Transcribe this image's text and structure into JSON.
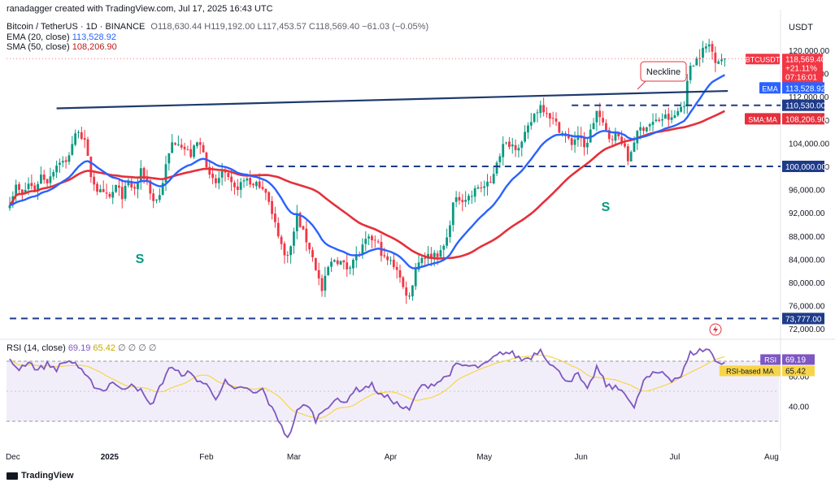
{
  "header": {
    "creator": "ranadagger created with TradingView.com, Jul 17, 2025 16:43 UTC",
    "symbol": "Bitcoin / TetherUS · 1D · BINANCE",
    "ohlc": "O118,630.44 H119,192.00 L117,453.57 C118,569.40 −61.03 (−0.05%)",
    "ema_label": "EMA (20, close)",
    "ema_value": "113,528.92",
    "sma_label": "SMA (50, close)",
    "sma_value": "108,206.90",
    "rsi_label": "RSI (14, close)",
    "rsi_value": "69.19",
    "rsi_ma_value": "65.42",
    "rsi_extra": "∅ ∅ ∅ ∅"
  },
  "axis": {
    "currency": "USDT"
  },
  "annotations": {
    "neckline": "Neckline",
    "shoulder_left": "S",
    "shoulder_right": "S"
  },
  "logo": {
    "text": "TradingView",
    "icon": "tradingview-logo-icon"
  },
  "colors": {
    "candle_up": "#089981",
    "candle_down": "#f23645",
    "ema": "#2962ff",
    "sma": "#e5303b",
    "rsi": "#7e57c2",
    "rsi_ma": "#f7d54a",
    "neckline": "#1e3a6e",
    "level": "#1e3a8a",
    "label_bg": "#f23645"
  },
  "chart_data": {
    "type": "candlestick",
    "price_ticks": [
      "120,000.00",
      "116,000.00",
      "112,000.00",
      "108,000.00",
      "104,000.00",
      "100,000.00",
      "96,000.00",
      "92,000.00",
      "88,000.00",
      "84,000.00",
      "80,000.00",
      "76,000.00",
      "72,000.00"
    ],
    "price_range": [
      70200,
      125600
    ],
    "rsi_ticks": [
      "60.00",
      "40.00"
    ],
    "rsi_range": [
      14.3,
      83.5
    ],
    "time_labels": [
      {
        "label": "Dec",
        "day": 1
      },
      {
        "label": "2025",
        "day": 32,
        "bold": true
      },
      {
        "label": "Feb",
        "day": 63
      },
      {
        "label": "Mar",
        "day": 91
      },
      {
        "label": "Apr",
        "day": 122
      },
      {
        "label": "May",
        "day": 152
      },
      {
        "label": "Jun",
        "day": 183
      },
      {
        "label": "Jul",
        "day": 213
      },
      {
        "label": "Aug",
        "day": 244
      }
    ],
    "last_day": 229,
    "badges": [
      {
        "text": "BTCUSDT",
        "sub": [
          "118,569.40",
          "+21.11%",
          "07:16:01"
        ],
        "price": 118569.4,
        "color": "#f23645"
      },
      {
        "text": "EMA",
        "value": "113,528.92",
        "price": 113528.92,
        "color": "#2962ff"
      },
      {
        "text": "",
        "value": "110,530.00",
        "price": 110530,
        "color": "#1e3a8a"
      },
      {
        "text": "SMA:MA",
        "value": "108,206.90",
        "price": 108206.9,
        "color": "#e5303b"
      },
      {
        "text": "",
        "value": "100,000.00",
        "price": 100000,
        "color": "#1e3a8a"
      },
      {
        "text": "",
        "value": "73,777.00",
        "price": 73777,
        "color": "#1e3a8a"
      }
    ],
    "rsi_badges": [
      {
        "text": "RSI",
        "value": "69.19",
        "rsi": 69.19,
        "color": "#7e57c2"
      },
      {
        "text": "RSI-based MA",
        "value": "65.42",
        "rsi": 65.42,
        "color": "#f7d54a"
      }
    ],
    "levels": [
      {
        "price": 110530,
        "from_day": 180
      },
      {
        "price": 100000,
        "from_day": 82
      },
      {
        "price": 73777,
        "from_day": 0
      }
    ],
    "neckline": {
      "from": {
        "day": 15,
        "price": 110000
      },
      "to": {
        "day": 230,
        "price": 113000
      }
    },
    "rsi_bands": [
      70,
      30
    ],
    "close_path": [
      {
        "day": 0,
        "price": 94000
      },
      {
        "day": 2,
        "price": 96500
      },
      {
        "day": 4,
        "price": 95000
      },
      {
        "day": 6,
        "price": 97000
      },
      {
        "day": 8,
        "price": 96000
      },
      {
        "day": 10,
        "price": 98500
      },
      {
        "day": 12,
        "price": 97500
      },
      {
        "day": 14,
        "price": 99500
      },
      {
        "day": 16,
        "price": 101000
      },
      {
        "day": 18,
        "price": 100500
      },
      {
        "day": 20,
        "price": 104000
      },
      {
        "day": 22,
        "price": 106500
      },
      {
        "day": 24,
        "price": 104000
      },
      {
        "day": 26,
        "price": 98500
      },
      {
        "day": 28,
        "price": 96000
      },
      {
        "day": 30,
        "price": 95000
      },
      {
        "day": 32,
        "price": 94500
      },
      {
        "day": 34,
        "price": 96500
      },
      {
        "day": 36,
        "price": 95000
      },
      {
        "day": 38,
        "price": 97000
      },
      {
        "day": 40,
        "price": 96000
      },
      {
        "day": 42,
        "price": 99000
      },
      {
        "day": 44,
        "price": 97500
      },
      {
        "day": 46,
        "price": 94000
      },
      {
        "day": 48,
        "price": 95000
      },
      {
        "day": 50,
        "price": 100000
      },
      {
        "day": 52,
        "price": 104000
      },
      {
        "day": 54,
        "price": 104500
      },
      {
        "day": 56,
        "price": 103000
      },
      {
        "day": 58,
        "price": 102000
      },
      {
        "day": 60,
        "price": 104000
      },
      {
        "day": 62,
        "price": 103000
      },
      {
        "day": 64,
        "price": 98000
      },
      {
        "day": 66,
        "price": 97000
      },
      {
        "day": 68,
        "price": 99000
      },
      {
        "day": 70,
        "price": 97500
      },
      {
        "day": 72,
        "price": 96000
      },
      {
        "day": 74,
        "price": 97000
      },
      {
        "day": 76,
        "price": 98000
      },
      {
        "day": 78,
        "price": 96500
      },
      {
        "day": 80,
        "price": 97000
      },
      {
        "day": 82,
        "price": 96000
      },
      {
        "day": 84,
        "price": 91500
      },
      {
        "day": 86,
        "price": 88500
      },
      {
        "day": 88,
        "price": 84500
      },
      {
        "day": 90,
        "price": 86000
      },
      {
        "day": 92,
        "price": 91500
      },
      {
        "day": 94,
        "price": 88500
      },
      {
        "day": 96,
        "price": 86000
      },
      {
        "day": 98,
        "price": 82500
      },
      {
        "day": 100,
        "price": 78500
      },
      {
        "day": 102,
        "price": 82500
      },
      {
        "day": 104,
        "price": 84000
      },
      {
        "day": 106,
        "price": 83500
      },
      {
        "day": 108,
        "price": 82500
      },
      {
        "day": 110,
        "price": 84000
      },
      {
        "day": 112,
        "price": 85000
      },
      {
        "day": 114,
        "price": 87000
      },
      {
        "day": 116,
        "price": 87500
      },
      {
        "day": 118,
        "price": 86500
      },
      {
        "day": 120,
        "price": 84000
      },
      {
        "day": 122,
        "price": 83500
      },
      {
        "day": 124,
        "price": 82500
      },
      {
        "day": 126,
        "price": 79000
      },
      {
        "day": 128,
        "price": 77500
      },
      {
        "day": 130,
        "price": 82500
      },
      {
        "day": 132,
        "price": 84500
      },
      {
        "day": 134,
        "price": 84500
      },
      {
        "day": 136,
        "price": 85000
      },
      {
        "day": 138,
        "price": 85000
      },
      {
        "day": 140,
        "price": 87500
      },
      {
        "day": 142,
        "price": 93500
      },
      {
        "day": 144,
        "price": 94500
      },
      {
        "day": 146,
        "price": 94500
      },
      {
        "day": 148,
        "price": 95000
      },
      {
        "day": 150,
        "price": 96500
      },
      {
        "day": 152,
        "price": 96500
      },
      {
        "day": 154,
        "price": 97000
      },
      {
        "day": 156,
        "price": 101000
      },
      {
        "day": 158,
        "price": 103500
      },
      {
        "day": 160,
        "price": 104000
      },
      {
        "day": 162,
        "price": 103500
      },
      {
        "day": 164,
        "price": 104000
      },
      {
        "day": 166,
        "price": 106500
      },
      {
        "day": 168,
        "price": 109000
      },
      {
        "day": 170,
        "price": 110500
      },
      {
        "day": 172,
        "price": 109500
      },
      {
        "day": 174,
        "price": 108000
      },
      {
        "day": 176,
        "price": 106500
      },
      {
        "day": 178,
        "price": 105000
      },
      {
        "day": 180,
        "price": 104000
      },
      {
        "day": 182,
        "price": 105500
      },
      {
        "day": 184,
        "price": 103000
      },
      {
        "day": 186,
        "price": 106000
      },
      {
        "day": 188,
        "price": 109500
      },
      {
        "day": 190,
        "price": 107000
      },
      {
        "day": 192,
        "price": 105000
      },
      {
        "day": 194,
        "price": 105500
      },
      {
        "day": 196,
        "price": 104500
      },
      {
        "day": 198,
        "price": 101000
      },
      {
        "day": 200,
        "price": 104500
      },
      {
        "day": 202,
        "price": 106500
      },
      {
        "day": 204,
        "price": 107000
      },
      {
        "day": 206,
        "price": 107500
      },
      {
        "day": 208,
        "price": 108000
      },
      {
        "day": 210,
        "price": 108500
      },
      {
        "day": 212,
        "price": 108000
      },
      {
        "day": 214,
        "price": 109500
      },
      {
        "day": 216,
        "price": 111000
      },
      {
        "day": 218,
        "price": 117500
      },
      {
        "day": 220,
        "price": 118500
      },
      {
        "day": 222,
        "price": 120000
      },
      {
        "day": 224,
        "price": 121000
      },
      {
        "day": 226,
        "price": 118500
      },
      {
        "day": 228,
        "price": 118500
      },
      {
        "day": 229,
        "price": 118569.4
      }
    ],
    "rsi_path": [
      {
        "day": 0,
        "rsi": 70
      },
      {
        "day": 3,
        "rsi": 65
      },
      {
        "day": 6,
        "rsi": 70
      },
      {
        "day": 9,
        "rsi": 64
      },
      {
        "day": 12,
        "rsi": 68
      },
      {
        "day": 15,
        "rsi": 65
      },
      {
        "day": 18,
        "rsi": 70
      },
      {
        "day": 21,
        "rsi": 69
      },
      {
        "day": 24,
        "rsi": 60
      },
      {
        "day": 27,
        "rsi": 54
      },
      {
        "day": 30,
        "rsi": 50
      },
      {
        "day": 33,
        "rsi": 57
      },
      {
        "day": 36,
        "rsi": 50
      },
      {
        "day": 39,
        "rsi": 56
      },
      {
        "day": 42,
        "rsi": 50
      },
      {
        "day": 45,
        "rsi": 40
      },
      {
        "day": 48,
        "rsi": 52
      },
      {
        "day": 51,
        "rsi": 66
      },
      {
        "day": 54,
        "rsi": 62
      },
      {
        "day": 57,
        "rsi": 62
      },
      {
        "day": 60,
        "rsi": 58
      },
      {
        "day": 63,
        "rsi": 54
      },
      {
        "day": 66,
        "rsi": 46
      },
      {
        "day": 69,
        "rsi": 56
      },
      {
        "day": 72,
        "rsi": 50
      },
      {
        "day": 75,
        "rsi": 53
      },
      {
        "day": 78,
        "rsi": 48
      },
      {
        "day": 81,
        "rsi": 51
      },
      {
        "day": 84,
        "rsi": 38
      },
      {
        "day": 87,
        "rsi": 28
      },
      {
        "day": 89,
        "rsi": 18
      },
      {
        "day": 92,
        "rsi": 36
      },
      {
        "day": 95,
        "rsi": 42
      },
      {
        "day": 98,
        "rsi": 31
      },
      {
        "day": 101,
        "rsi": 39
      },
      {
        "day": 104,
        "rsi": 44
      },
      {
        "day": 107,
        "rsi": 42
      },
      {
        "day": 110,
        "rsi": 50
      },
      {
        "day": 113,
        "rsi": 52
      },
      {
        "day": 116,
        "rsi": 54
      },
      {
        "day": 119,
        "rsi": 47
      },
      {
        "day": 122,
        "rsi": 45
      },
      {
        "day": 125,
        "rsi": 40
      },
      {
        "day": 128,
        "rsi": 37
      },
      {
        "day": 131,
        "rsi": 52
      },
      {
        "day": 134,
        "rsi": 54
      },
      {
        "day": 137,
        "rsi": 56
      },
      {
        "day": 140,
        "rsi": 60
      },
      {
        "day": 143,
        "rsi": 67
      },
      {
        "day": 146,
        "rsi": 67
      },
      {
        "day": 149,
        "rsi": 66
      },
      {
        "day": 152,
        "rsi": 67
      },
      {
        "day": 155,
        "rsi": 72
      },
      {
        "day": 158,
        "rsi": 76
      },
      {
        "day": 161,
        "rsi": 75
      },
      {
        "day": 164,
        "rsi": 71
      },
      {
        "day": 167,
        "rsi": 73
      },
      {
        "day": 170,
        "rsi": 78
      },
      {
        "day": 173,
        "rsi": 69
      },
      {
        "day": 176,
        "rsi": 62
      },
      {
        "day": 179,
        "rsi": 57
      },
      {
        "day": 182,
        "rsi": 61
      },
      {
        "day": 185,
        "rsi": 50
      },
      {
        "day": 188,
        "rsi": 66
      },
      {
        "day": 191,
        "rsi": 54
      },
      {
        "day": 194,
        "rsi": 52
      },
      {
        "day": 197,
        "rsi": 50
      },
      {
        "day": 200,
        "rsi": 38
      },
      {
        "day": 203,
        "rsi": 57
      },
      {
        "day": 206,
        "rsi": 61
      },
      {
        "day": 209,
        "rsi": 63
      },
      {
        "day": 212,
        "rsi": 58
      },
      {
        "day": 215,
        "rsi": 60
      },
      {
        "day": 218,
        "rsi": 75
      },
      {
        "day": 221,
        "rsi": 77
      },
      {
        "day": 224,
        "rsi": 78
      },
      {
        "day": 226,
        "rsi": 70
      },
      {
        "day": 229,
        "rsi": 69.19
      }
    ]
  }
}
